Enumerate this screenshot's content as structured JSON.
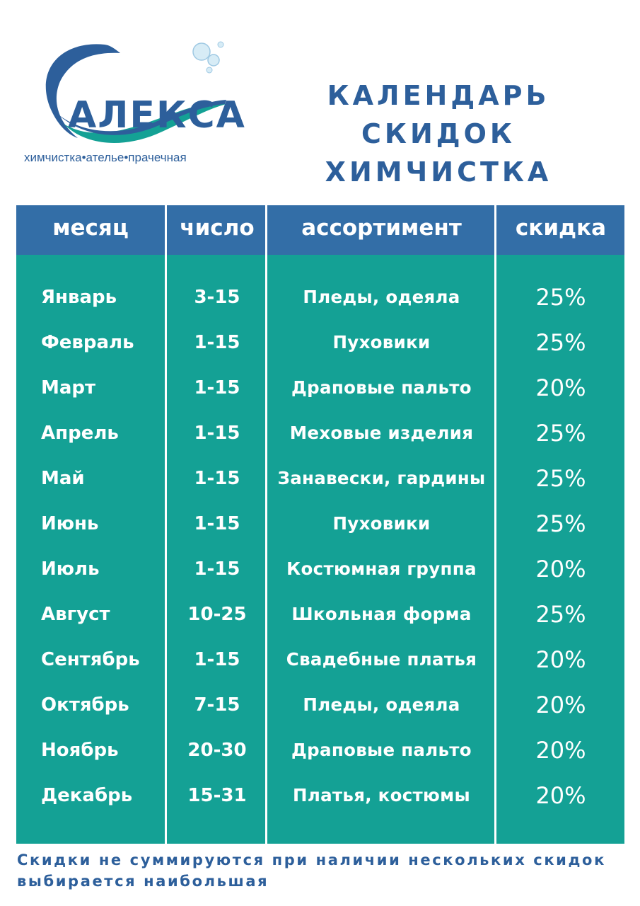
{
  "logo": {
    "name": "АЛЕКСА",
    "tagline": "химчистка•ателье•прачечная"
  },
  "title": {
    "line1": "КАЛЕНДАРЬ СКИДОК",
    "line2": "ХИМЧИСТКА"
  },
  "colors": {
    "brand_blue": "#2d5f9b",
    "header_blue": "#336ea7",
    "table_teal": "#14a195"
  },
  "table": {
    "headers": [
      "месяц",
      "число",
      "ассортимент",
      "скидка"
    ],
    "rows": [
      {
        "month": "Январь",
        "days": "3-15",
        "items": "Пледы, одеяла",
        "discount": "25%"
      },
      {
        "month": "Февраль",
        "days": "1-15",
        "items": "Пуховики",
        "discount": "25%"
      },
      {
        "month": "Март",
        "days": "1-15",
        "items": "Драповые пальто",
        "discount": "20%"
      },
      {
        "month": "Апрель",
        "days": "1-15",
        "items": "Меховые изделия",
        "discount": "25%"
      },
      {
        "month": "Май",
        "days": "1-15",
        "items": "Занавески, гардины",
        "discount": "25%"
      },
      {
        "month": "Июнь",
        "days": "1-15",
        "items": "Пуховики",
        "discount": "25%"
      },
      {
        "month": "Июль",
        "days": "1-15",
        "items": "Костюмная группа",
        "discount": "20%"
      },
      {
        "month": "Август",
        "days": "10-25",
        "items": "Школьная форма",
        "discount": "25%"
      },
      {
        "month": "Сентябрь",
        "days": "1-15",
        "items": "Свадебные платья",
        "discount": "20%"
      },
      {
        "month": "Октябрь",
        "days": "7-15",
        "items": "Пледы, одеяла",
        "discount": "20%"
      },
      {
        "month": "Ноябрь",
        "days": "20-30",
        "items": "Драповые пальто",
        "discount": "20%"
      },
      {
        "month": "Декабрь",
        "days": "15-31",
        "items": "Платья, костюмы",
        "discount": "20%"
      }
    ]
  },
  "footer": {
    "line1": "Скидки не суммируются при наличии нескольких скидок",
    "line2": "выбирается наибольшая"
  }
}
